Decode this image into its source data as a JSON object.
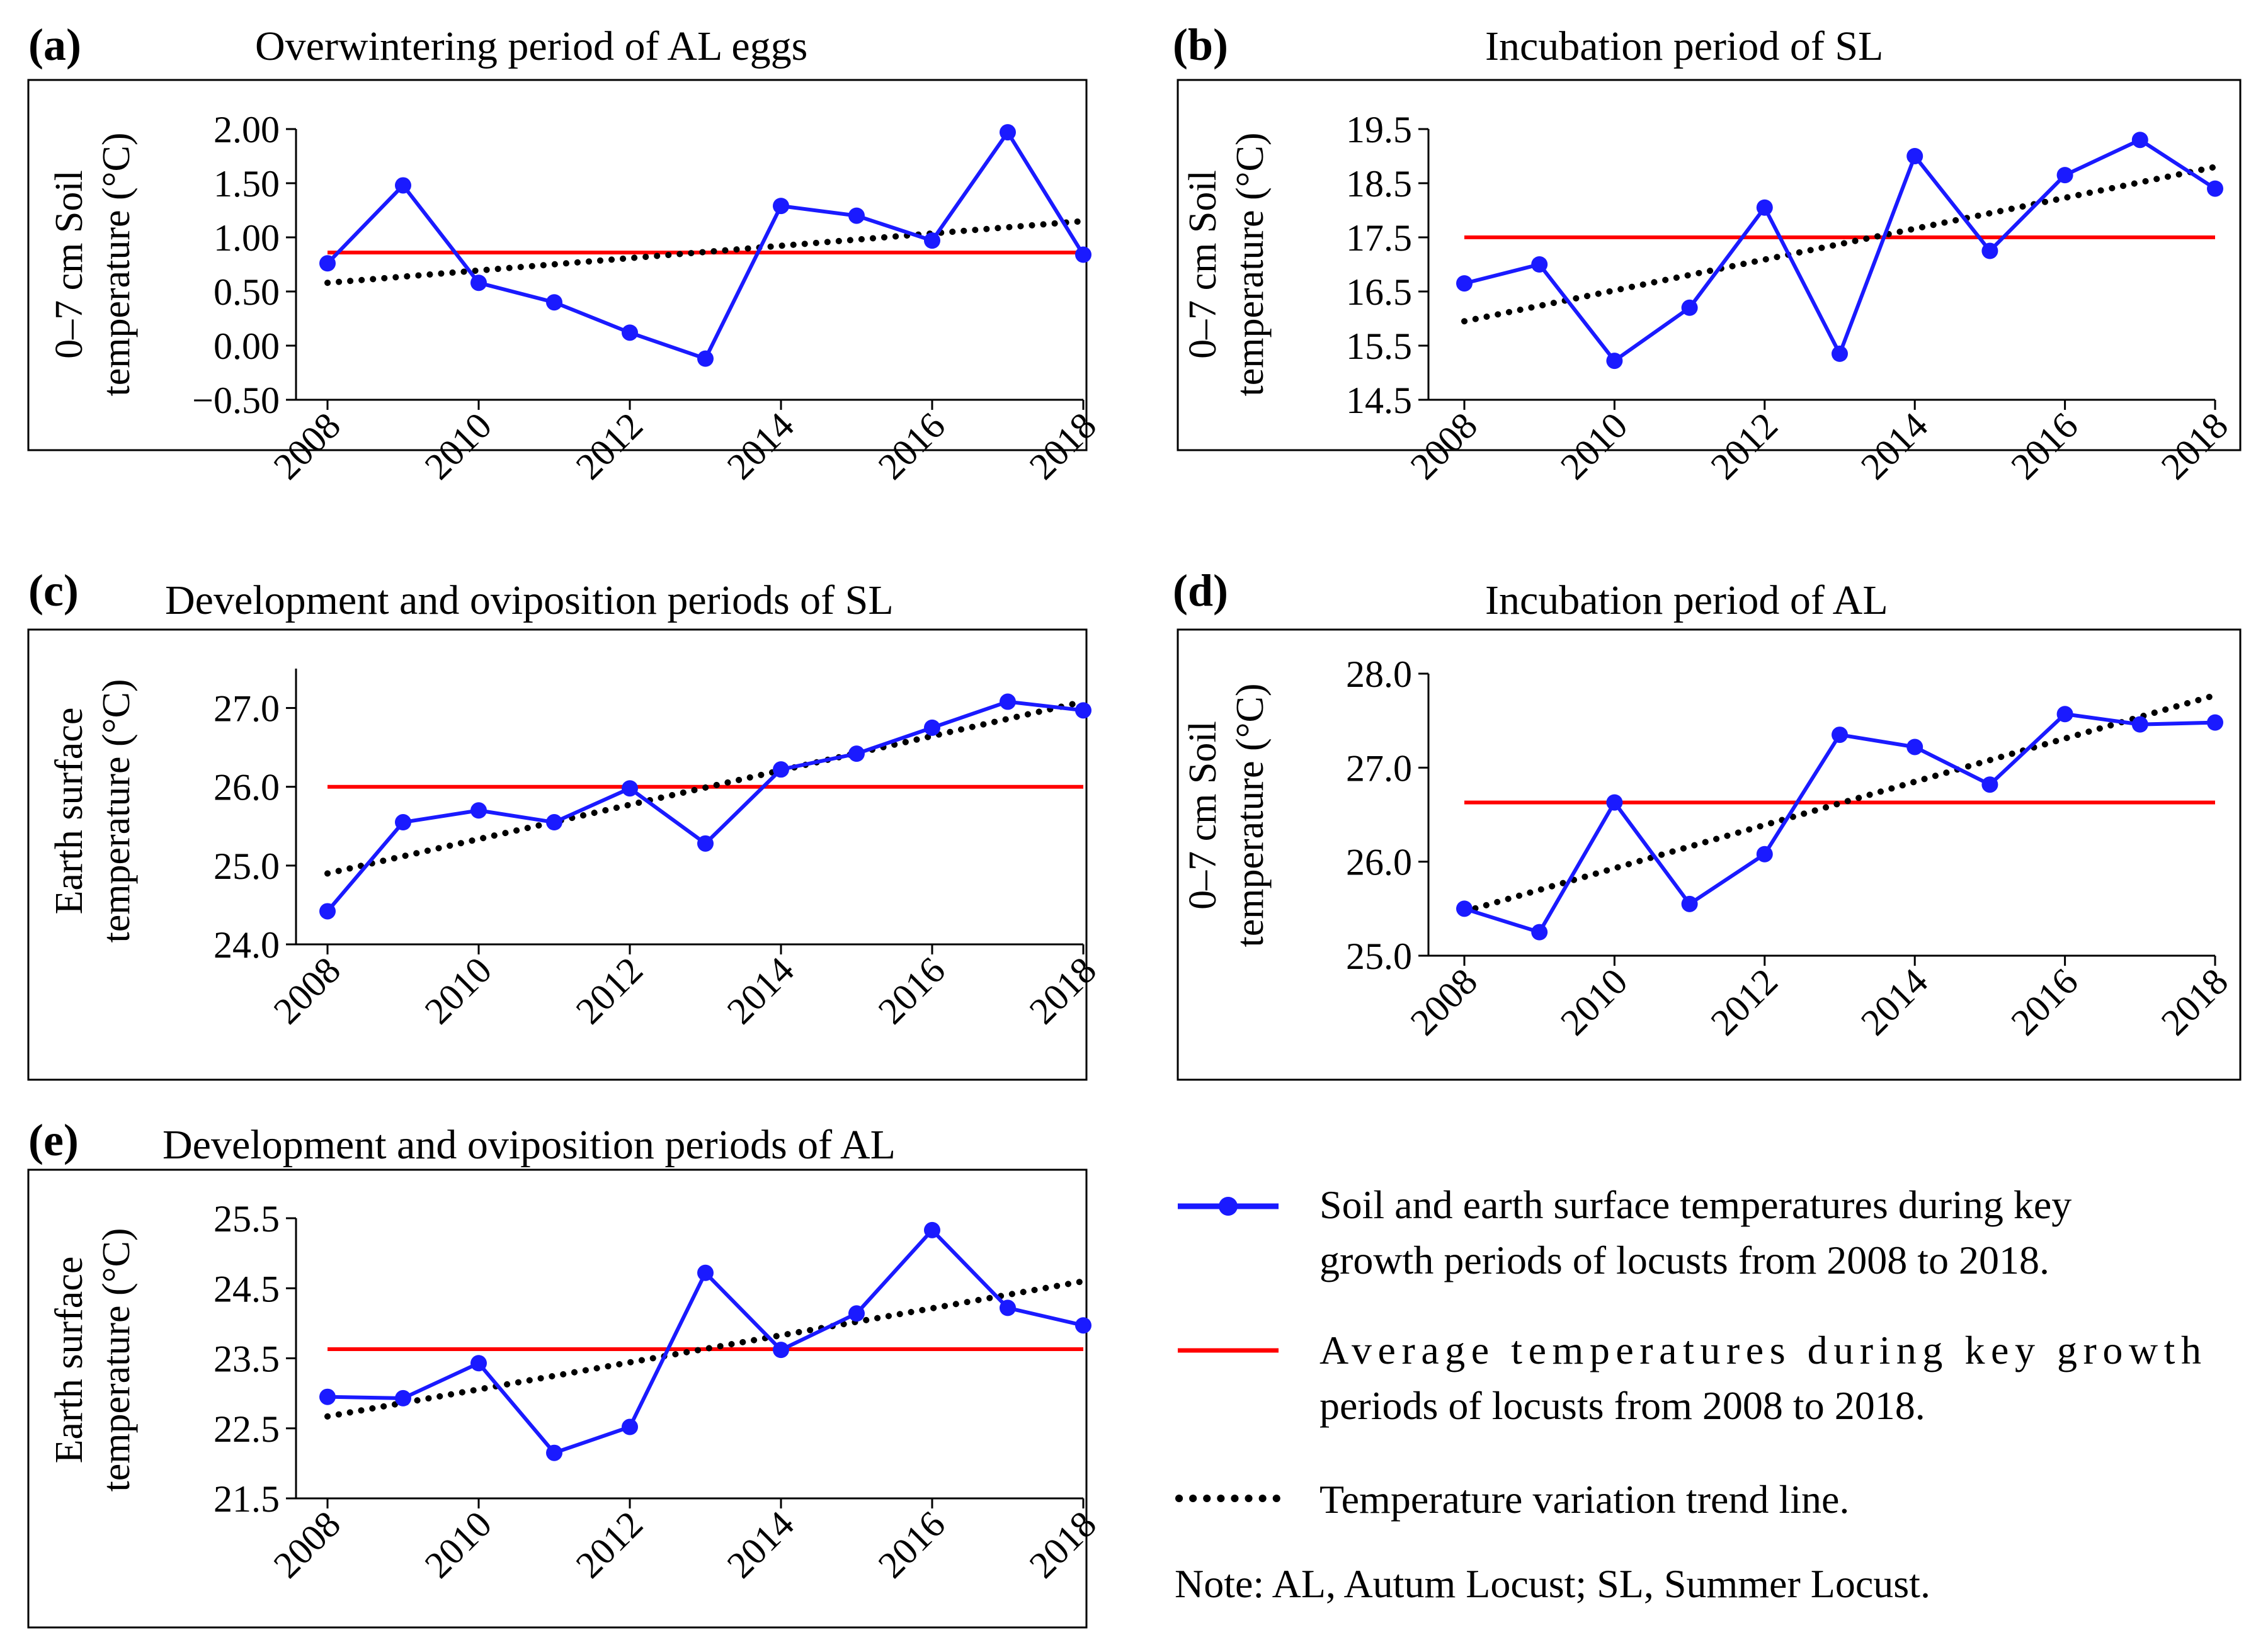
{
  "figure": {
    "colors": {
      "series": "#1a1aff",
      "average": "#ff0000",
      "trend": "#000000",
      "frame": "#000000"
    },
    "legend": {
      "series_label_line1": "Soil and earth surface temperatures during key",
      "series_label_line2": "growth periods of locusts from 2008 to 2018.",
      "average_label_line1": "Average temperatures during key growth",
      "average_label_line2": "periods of locusts from 2008 to 2018.",
      "trend_label": "Temperature variation trend line.",
      "note": "Note: AL, Autum Locust; SL, Summer Locust."
    }
  },
  "chart_data": [
    {
      "id": "a",
      "letter": "(a)",
      "type": "line",
      "title": "Overwintering period of AL eggs",
      "ylabel_line1": "0–7 cm Soil",
      "ylabel_line2": "temperature (°C)",
      "x": [
        2008,
        2009,
        2010,
        2011,
        2012,
        2013,
        2014,
        2015,
        2016,
        2017,
        2018
      ],
      "xticks": [
        "2008",
        "2010",
        "2012",
        "2014",
        "2016",
        "2018"
      ],
      "values": [
        0.76,
        1.48,
        0.58,
        0.4,
        0.12,
        -0.12,
        1.29,
        1.2,
        0.97,
        1.97,
        0.84
      ],
      "average": 0.86,
      "trend": [
        0.58,
        1.15
      ],
      "ylim": [
        -0.5,
        2.0
      ],
      "yticks": [
        "-0.50",
        "0.00",
        "0.50",
        "1.00",
        "1.50",
        "2.00"
      ],
      "ytick_values": [
        -0.5,
        0.0,
        0.5,
        1.0,
        1.5,
        2.0
      ]
    },
    {
      "id": "b",
      "letter": "(b)",
      "type": "line",
      "title": "Incubation period of SL",
      "ylabel_line1": "0–7 cm Soil",
      "ylabel_line2": "temperature (°C)",
      "x": [
        2008,
        2009,
        2010,
        2011,
        2012,
        2013,
        2014,
        2015,
        2016,
        2017,
        2018
      ],
      "xticks": [
        "2008",
        "2010",
        "2012",
        "2014",
        "2016",
        "2018"
      ],
      "values": [
        16.65,
        17.0,
        15.22,
        16.2,
        18.05,
        15.35,
        19.0,
        17.25,
        18.65,
        19.3,
        18.4
      ],
      "average": 17.5,
      "trend": [
        15.95,
        18.8
      ],
      "ylim": [
        14.5,
        19.5
      ],
      "yticks": [
        "14.5",
        "15.5",
        "16.5",
        "17.5",
        "18.5",
        "19.5"
      ],
      "ytick_values": [
        14.5,
        15.5,
        16.5,
        17.5,
        18.5,
        19.5
      ]
    },
    {
      "id": "c",
      "letter": "(c)",
      "type": "line",
      "title": "Development and oviposition periods of SL",
      "ylabel_line1": "Earth surface",
      "ylabel_line2": "temperature (°C)",
      "x": [
        2008,
        2009,
        2010,
        2011,
        2012,
        2013,
        2014,
        2015,
        2016,
        2017,
        2018
      ],
      "xticks": [
        "2008",
        "2010",
        "2012",
        "2014",
        "2016",
        "2018"
      ],
      "values": [
        24.42,
        25.55,
        25.7,
        25.55,
        25.98,
        25.28,
        26.22,
        26.42,
        26.75,
        27.08,
        26.97
      ],
      "average": 26.0,
      "trend": [
        24.9,
        27.08
      ],
      "ylim": [
        24.0,
        27.5
      ],
      "yticks": [
        "24.0",
        "25.0",
        "26.0",
        "27.0"
      ],
      "ytick_values": [
        24.0,
        25.0,
        26.0,
        27.0
      ]
    },
    {
      "id": "d",
      "letter": "(d)",
      "type": "line",
      "title": "Incubation period of AL",
      "ylabel_line1": "0–7 cm Soil",
      "ylabel_line2": "temperature (°C)",
      "x": [
        2008,
        2009,
        2010,
        2011,
        2012,
        2013,
        2014,
        2015,
        2016,
        2017,
        2018
      ],
      "xticks": [
        "2008",
        "2010",
        "2012",
        "2014",
        "2016",
        "2018"
      ],
      "values": [
        25.5,
        25.25,
        26.63,
        25.55,
        26.08,
        27.35,
        27.22,
        26.82,
        27.57,
        27.46,
        27.48
      ],
      "average": 26.63,
      "trend": [
        25.47,
        27.77
      ],
      "ylim": [
        25.0,
        28.0
      ],
      "yticks": [
        "25.0",
        "26.0",
        "27.0",
        "28.0"
      ],
      "ytick_values": [
        25.0,
        26.0,
        27.0,
        28.0
      ]
    },
    {
      "id": "e",
      "letter": "(e)",
      "type": "line",
      "title": "Development and oviposition periods of AL",
      "ylabel_line1": "Earth surface",
      "ylabel_line2": "temperature (°C)",
      "x": [
        2008,
        2009,
        2010,
        2011,
        2012,
        2013,
        2014,
        2015,
        2016,
        2017,
        2018
      ],
      "xticks": [
        "2008",
        "2010",
        "2012",
        "2014",
        "2016",
        "2018"
      ],
      "values": [
        22.95,
        22.93,
        23.43,
        22.15,
        22.52,
        24.72,
        23.62,
        24.14,
        25.33,
        24.22,
        23.97
      ],
      "average": 23.63,
      "trend": [
        22.67,
        24.6
      ],
      "ylim": [
        21.5,
        25.5
      ],
      "yticks": [
        "21.5",
        "22.5",
        "23.5",
        "24.5",
        "25.5"
      ],
      "ytick_values": [
        21.5,
        22.5,
        23.5,
        24.5,
        25.5
      ]
    }
  ]
}
